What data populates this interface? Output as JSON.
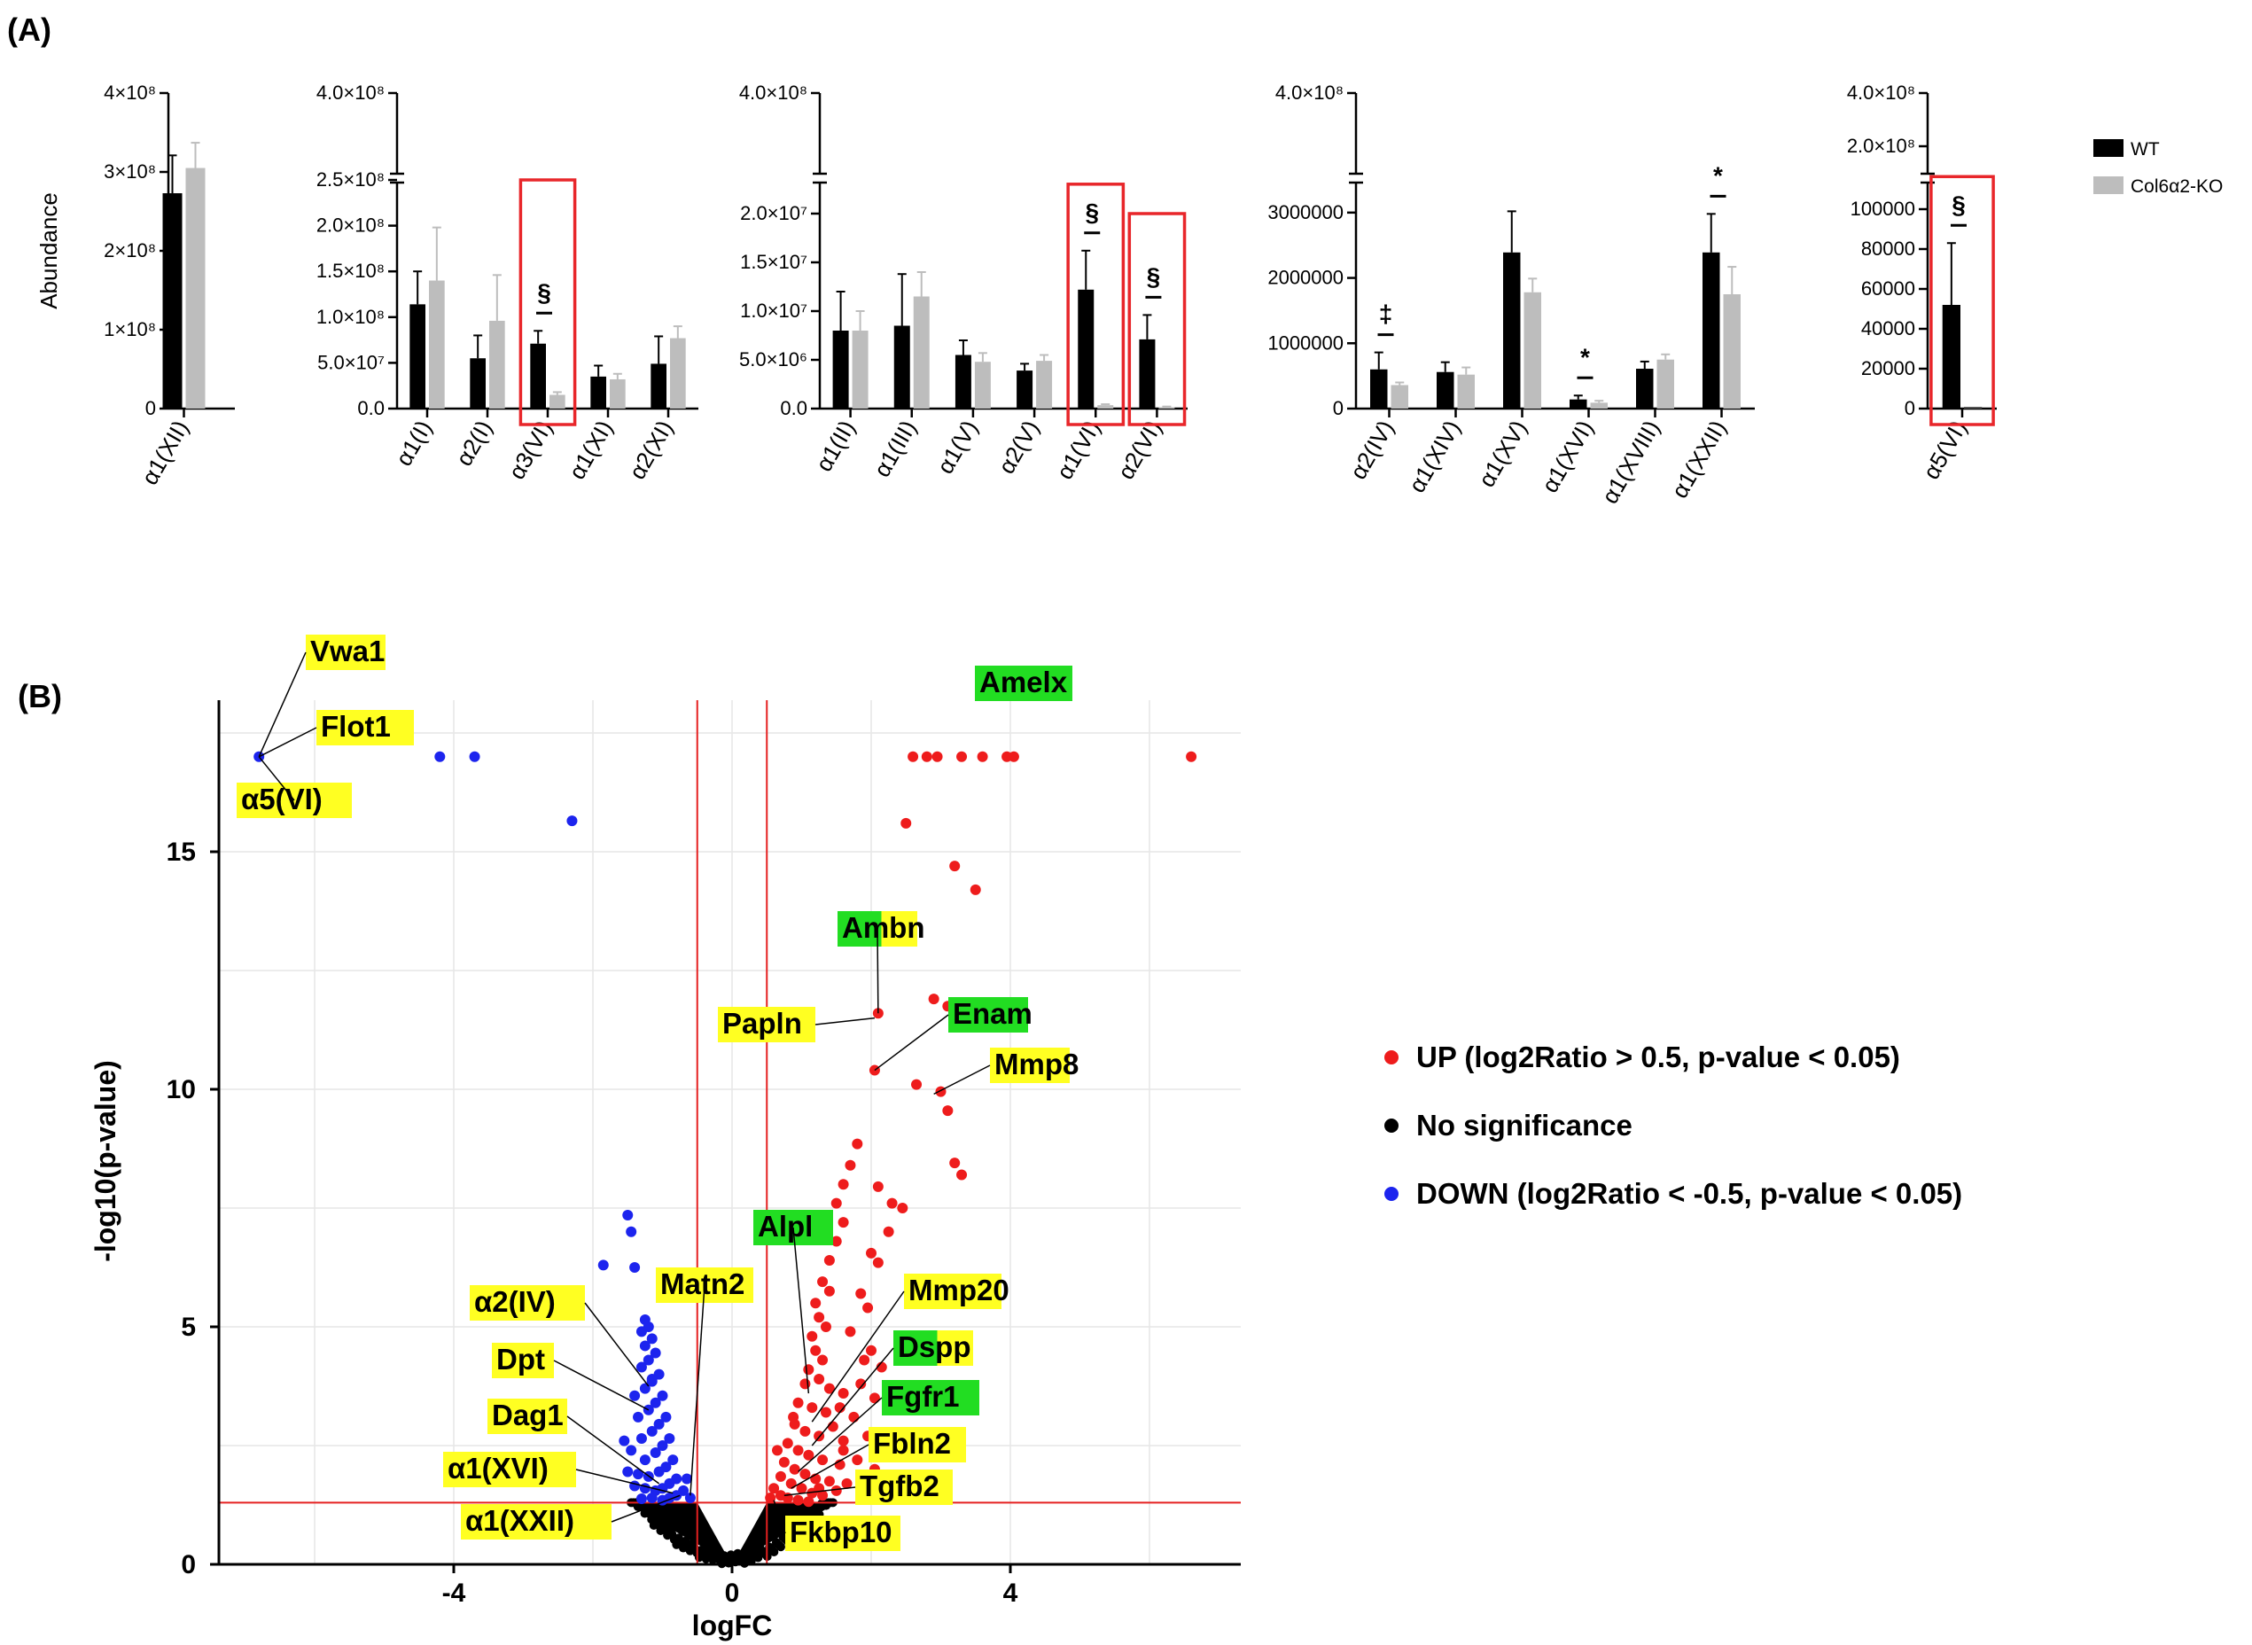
{
  "figure": {
    "panel_a_label": "(A)",
    "panel_b_label": "(B)"
  },
  "colors": {
    "wt": "#000000",
    "ko": "#bdbdbd",
    "highlight_box": "#e8262a",
    "up": "#ee1c1c",
    "down": "#1c24ee",
    "nosig": "#000000",
    "label_yellow": "#ffff22",
    "label_green": "#22dd22",
    "threshold_line": "#e52020",
    "grid": "#e6e6e6"
  },
  "legend_a": {
    "wt": "WT",
    "ko": "Col6α2-KO"
  },
  "chart_data": [
    {
      "type": "bar",
      "ylabel": "Abundance",
      "ylim": [
        0,
        400000000
      ],
      "broken_axis": false,
      "ticks": [
        {
          "value": 0,
          "label": "0"
        },
        {
          "value": 100000000,
          "label": "1×10⁸"
        },
        {
          "value": 200000000,
          "label": "2×10⁸"
        },
        {
          "value": 300000000,
          "label": "3×10⁸"
        },
        {
          "value": 400000000,
          "label": "4×10⁸"
        }
      ],
      "categories": [
        "α1(XII)"
      ],
      "series": [
        {
          "name": "WT",
          "values": [
            273000000
          ],
          "errors": [
            48000000
          ]
        },
        {
          "name": "Col6α2-KO",
          "values": [
            305000000
          ],
          "errors": [
            32000000
          ]
        }
      ],
      "significance": [],
      "boxed": []
    },
    {
      "type": "bar",
      "ylabel": "",
      "ylim": [
        0,
        250000000
      ],
      "broken_axis": true,
      "break_top_label": "4.0×10⁸",
      "ticks": [
        {
          "value": 0,
          "label": "0.0"
        },
        {
          "value": 50000000,
          "label": "5.0×10⁷"
        },
        {
          "value": 100000000,
          "label": "1.0×10⁸"
        },
        {
          "value": 150000000,
          "label": "1.5×10⁸"
        },
        {
          "value": 200000000,
          "label": "2.0×10⁸"
        },
        {
          "value": 250000000,
          "label": "2.5×10⁸"
        }
      ],
      "categories": [
        "α1(I)",
        "α2(I)",
        "α3(VI)",
        "α1(XI)",
        "α2(XI)"
      ],
      "series": [
        {
          "name": "WT",
          "values": [
            114000000,
            55000000,
            71000000,
            35000000,
            49000000
          ],
          "errors": [
            36000000,
            25000000,
            14000000,
            12000000,
            30000000
          ]
        },
        {
          "name": "Col6α2-KO",
          "values": [
            140000000,
            96000000,
            15000000,
            32000000,
            77000000
          ],
          "errors": [
            58000000,
            50000000,
            3000000,
            6000000,
            13000000
          ]
        }
      ],
      "significance": [
        {
          "category": "α3(VI)",
          "symbol": "§"
        }
      ],
      "boxed": [
        "α3(VI)"
      ]
    },
    {
      "type": "bar",
      "ylabel": "",
      "ylim": [
        0,
        20000000
      ],
      "broken_axis": true,
      "break_top_label": "4.0×10⁸",
      "ticks": [
        {
          "value": 0,
          "label": "0.0"
        },
        {
          "value": 5000000,
          "label": "5.0×10⁶"
        },
        {
          "value": 10000000,
          "label": "1.0×10⁷"
        },
        {
          "value": 15000000,
          "label": "1.5×10⁷"
        },
        {
          "value": 20000000,
          "label": "2.0×10⁷"
        }
      ],
      "categories": [
        "α1(II)",
        "α1(III)",
        "α1(V)",
        "α2(V)",
        "α1(VI)",
        "α2(VI)"
      ],
      "series": [
        {
          "name": "WT",
          "values": [
            8000000,
            8500000,
            5500000,
            3900000,
            12200000,
            7100000
          ],
          "errors": [
            4000000,
            5300000,
            1500000,
            700000,
            4000000,
            2500000
          ]
        },
        {
          "name": "Col6α2-KO",
          "values": [
            8000000,
            11500000,
            4800000,
            4900000,
            350000,
            150000
          ],
          "errors": [
            2000000,
            2500000,
            900000,
            600000,
            100000,
            60000
          ]
        }
      ],
      "significance": [
        {
          "category": "α1(VI)",
          "symbol": "§"
        },
        {
          "category": "α2(VI)",
          "symbol": "§"
        }
      ],
      "boxed": [
        "α1(VI)",
        "α2(VI)"
      ]
    },
    {
      "type": "bar",
      "ylabel": "",
      "ylim": [
        0,
        3500000
      ],
      "broken_axis": true,
      "break_top_label": "4.0×10⁸",
      "ticks": [
        {
          "value": 0,
          "label": "0"
        },
        {
          "value": 1000000,
          "label": "1000000"
        },
        {
          "value": 2000000,
          "label": "2000000"
        },
        {
          "value": 3000000,
          "label": "3000000"
        }
      ],
      "categories": [
        "α2(IV)",
        "α1(XIV)",
        "α1(XV)",
        "α1(XVI)",
        "α1(XVIII)",
        "α1(XXII)"
      ],
      "series": [
        {
          "name": "WT",
          "values": [
            600000,
            560000,
            2390000,
            140000,
            610000,
            2390000
          ],
          "errors": [
            260000,
            150000,
            630000,
            60000,
            110000,
            590000
          ]
        },
        {
          "name": "Col6α2-KO",
          "values": [
            360000,
            520000,
            1780000,
            90000,
            750000,
            1750000
          ],
          "errors": [
            40000,
            110000,
            210000,
            30000,
            80000,
            420000
          ]
        }
      ],
      "significance": [
        {
          "category": "α2(IV)",
          "symbol": "‡"
        },
        {
          "category": "α1(XVI)",
          "symbol": "*"
        },
        {
          "category": "α1(XXII)",
          "symbol": "*"
        }
      ],
      "boxed": []
    },
    {
      "type": "bar",
      "ylabel": "",
      "ylim": [
        0,
        100000
      ],
      "broken_axis": true,
      "break_top_label": "4.0×10⁸",
      "break_second_label": "2.0×10⁸",
      "ticks": [
        {
          "value": 0,
          "label": "0"
        },
        {
          "value": 20000,
          "label": "20000"
        },
        {
          "value": 40000,
          "label": "40000"
        },
        {
          "value": 60000,
          "label": "60000"
        },
        {
          "value": 80000,
          "label": "80000"
        },
        {
          "value": 100000,
          "label": "100000"
        }
      ],
      "categories": [
        "α5(VI)"
      ],
      "series": [
        {
          "name": "WT",
          "values": [
            52000
          ],
          "errors": [
            31000
          ]
        },
        {
          "name": "Col6α2-KO",
          "values": [
            0
          ],
          "errors": [
            0
          ]
        }
      ],
      "significance": [
        {
          "category": "α5(VI)",
          "symbol": "§"
        }
      ],
      "boxed": [
        "α5(VI)"
      ]
    },
    {
      "type": "scatter",
      "title": "",
      "xlabel": "logFC",
      "ylabel": "-log10(p-value)",
      "xlim": [
        -7.3,
        7.3
      ],
      "ylim": [
        0,
        18
      ],
      "x_ticks": [
        {
          "value": -4,
          "label": "-4"
        },
        {
          "value": 0,
          "label": "0"
        },
        {
          "value": 4,
          "label": "4"
        }
      ],
      "y_ticks": [
        {
          "value": 0,
          "label": "0"
        },
        {
          "value": 5,
          "label": "5"
        },
        {
          "value": 10,
          "label": "10"
        },
        {
          "value": 15,
          "label": "15"
        }
      ],
      "thresholds": {
        "x": [
          -0.5,
          0.5
        ],
        "y": 1.3
      },
      "legend": [
        {
          "key": "up",
          "label": "UP (log2Ratio > 0.5, p-value < 0.05)"
        },
        {
          "key": "nosig",
          "label": "No significance"
        },
        {
          "key": "down",
          "label": "DOWN (log2Ratio < -0.5, p-value < 0.05)"
        }
      ],
      "up_points": [
        [
          6.6,
          17.0
        ],
        [
          2.6,
          17.0
        ],
        [
          2.8,
          17.0
        ],
        [
          2.95,
          17.0
        ],
        [
          3.3,
          17.0
        ],
        [
          3.6,
          17.0
        ],
        [
          3.95,
          17.0
        ],
        [
          4.05,
          17.0
        ],
        [
          2.5,
          15.6
        ],
        [
          3.2,
          14.7
        ],
        [
          3.5,
          14.2
        ],
        [
          2.1,
          11.6
        ],
        [
          2.9,
          11.9
        ],
        [
          3.1,
          11.75
        ],
        [
          2.05,
          10.4
        ],
        [
          2.65,
          10.1
        ],
        [
          3.0,
          9.95
        ],
        [
          3.1,
          9.55
        ],
        [
          3.2,
          8.45
        ],
        [
          3.3,
          8.2
        ],
        [
          1.8,
          8.85
        ],
        [
          1.7,
          8.4
        ],
        [
          1.6,
          8.0
        ],
        [
          2.1,
          7.95
        ],
        [
          1.5,
          7.6
        ],
        [
          2.3,
          7.6
        ],
        [
          2.45,
          7.5
        ],
        [
          1.6,
          7.2
        ],
        [
          2.25,
          7.0
        ],
        [
          1.5,
          6.8
        ],
        [
          1.4,
          6.4
        ],
        [
          2.0,
          6.55
        ],
        [
          2.1,
          6.35
        ],
        [
          1.3,
          5.95
        ],
        [
          1.4,
          5.75
        ],
        [
          1.2,
          5.5
        ],
        [
          1.85,
          5.7
        ],
        [
          1.95,
          5.4
        ],
        [
          1.25,
          5.2
        ],
        [
          1.35,
          5.0
        ],
        [
          1.15,
          4.8
        ],
        [
          1.7,
          4.9
        ],
        [
          2.0,
          4.5
        ],
        [
          1.2,
          4.5
        ],
        [
          1.3,
          4.3
        ],
        [
          1.1,
          4.1
        ],
        [
          1.9,
          4.3
        ],
        [
          2.15,
          4.15
        ],
        [
          1.05,
          3.8
        ],
        [
          1.25,
          3.9
        ],
        [
          1.4,
          3.7
        ],
        [
          1.6,
          3.6
        ],
        [
          1.85,
          3.8
        ],
        [
          2.05,
          3.5
        ],
        [
          0.95,
          3.4
        ],
        [
          1.15,
          3.3
        ],
        [
          1.35,
          3.2
        ],
        [
          1.55,
          3.3
        ],
        [
          1.75,
          3.1
        ],
        [
          0.9,
          2.95
        ],
        [
          1.05,
          2.8
        ],
        [
          1.25,
          2.7
        ],
        [
          1.45,
          2.9
        ],
        [
          1.6,
          2.6
        ],
        [
          1.95,
          2.7
        ],
        [
          2.2,
          2.55
        ],
        [
          0.8,
          2.55
        ],
        [
          0.95,
          2.4
        ],
        [
          1.1,
          2.3
        ],
        [
          1.3,
          2.2
        ],
        [
          1.55,
          2.1
        ],
        [
          1.8,
          2.2
        ],
        [
          2.05,
          2.0
        ],
        [
          0.75,
          2.15
        ],
        [
          0.9,
          2.0
        ],
        [
          1.05,
          1.9
        ],
        [
          1.2,
          1.8
        ],
        [
          1.4,
          1.75
        ],
        [
          1.65,
          1.7
        ],
        [
          0.7,
          1.85
        ],
        [
          0.85,
          1.7
        ],
        [
          1.0,
          1.6
        ],
        [
          1.15,
          1.5
        ],
        [
          1.3,
          1.45
        ],
        [
          1.5,
          1.55
        ],
        [
          0.6,
          1.6
        ],
        [
          0.7,
          1.45
        ],
        [
          0.8,
          1.4
        ],
        [
          0.95,
          1.35
        ],
        [
          1.1,
          1.32
        ],
        [
          0.55,
          1.4
        ],
        [
          1.25,
          1.6
        ],
        [
          1.6,
          2.4
        ],
        [
          0.65,
          2.4
        ],
        [
          0.88,
          3.1
        ]
      ],
      "down_points": [
        [
          -6.8,
          17.0
        ],
        [
          -4.2,
          17.0
        ],
        [
          -3.7,
          17.0
        ],
        [
          -2.3,
          15.65
        ],
        [
          -1.5,
          7.35
        ],
        [
          -1.45,
          7.0
        ],
        [
          -1.85,
          6.3
        ],
        [
          -1.4,
          6.25
        ],
        [
          -1.25,
          5.15
        ],
        [
          -1.2,
          5.0
        ],
        [
          -1.3,
          4.9
        ],
        [
          -1.15,
          4.75
        ],
        [
          -1.25,
          4.6
        ],
        [
          -1.1,
          4.45
        ],
        [
          -1.2,
          4.3
        ],
        [
          -1.3,
          4.15
        ],
        [
          -1.05,
          4.0
        ],
        [
          -1.15,
          3.85
        ],
        [
          -1.25,
          3.7
        ],
        [
          -1.4,
          3.55
        ],
        [
          -1.0,
          3.55
        ],
        [
          -1.1,
          3.4
        ],
        [
          -1.2,
          3.25
        ],
        [
          -1.35,
          3.1
        ],
        [
          -0.95,
          3.1
        ],
        [
          -1.05,
          2.95
        ],
        [
          -1.15,
          2.8
        ],
        [
          -1.3,
          2.65
        ],
        [
          -0.9,
          2.65
        ],
        [
          -1.0,
          2.5
        ],
        [
          -1.1,
          2.35
        ],
        [
          -1.25,
          2.2
        ],
        [
          -1.45,
          2.4
        ],
        [
          -0.85,
          2.2
        ],
        [
          -0.95,
          2.05
        ],
        [
          -1.05,
          1.95
        ],
        [
          -1.2,
          1.85
        ],
        [
          -1.35,
          1.9
        ],
        [
          -1.5,
          1.95
        ],
        [
          -0.8,
          1.8
        ],
        [
          -0.9,
          1.7
        ],
        [
          -1.0,
          1.6
        ],
        [
          -1.1,
          1.55
        ],
        [
          -1.25,
          1.6
        ],
        [
          -1.4,
          1.65
        ],
        [
          -0.7,
          1.55
        ],
        [
          -0.8,
          1.45
        ],
        [
          -0.9,
          1.4
        ],
        [
          -1.0,
          1.35
        ],
        [
          -1.15,
          1.4
        ],
        [
          -1.3,
          1.38
        ],
        [
          -0.6,
          1.4
        ],
        [
          -0.65,
          1.8
        ],
        [
          -1.55,
          2.6
        ],
        [
          -1.15,
          3.9
        ]
      ],
      "labels": [
        {
          "text": "Vwa1",
          "bg": "yellow",
          "target": [
            -6.8,
            17.0
          ]
        },
        {
          "text": "Flot1",
          "bg": "yellow",
          "target": [
            -6.8,
            17.0
          ]
        },
        {
          "text": "α5(VI)",
          "bg": "yellow",
          "target": [
            -6.8,
            17.0
          ]
        },
        {
          "text": "Amelx",
          "bg": "green",
          "target": null
        },
        {
          "text": "Ambn",
          "bg": "mixed",
          "target": [
            2.1,
            11.6
          ]
        },
        {
          "text": "Papln",
          "bg": "yellow",
          "target": [
            2.05,
            11.5
          ]
        },
        {
          "text": "Enam",
          "bg": "green",
          "target": [
            2.05,
            10.4
          ]
        },
        {
          "text": "Mmp8",
          "bg": "yellow",
          "target": [
            2.9,
            9.9
          ]
        },
        {
          "text": "Alpl",
          "bg": "green",
          "target": [
            1.1,
            3.6
          ]
        },
        {
          "text": "Mmp20",
          "bg": "yellow",
          "target": [
            1.15,
            3.0
          ]
        },
        {
          "text": "Dspp",
          "bg": "mixed",
          "target": [
            1.15,
            2.5
          ]
        },
        {
          "text": "Fgfr1",
          "bg": "green",
          "target": [
            0.95,
            1.95
          ]
        },
        {
          "text": "Fbln2",
          "bg": "yellow",
          "target": [
            0.85,
            1.6
          ]
        },
        {
          "text": "Tgfb2",
          "bg": "yellow",
          "target": [
            0.75,
            1.45
          ]
        },
        {
          "text": "Fkbp10",
          "bg": "yellow",
          "target": [
            0.6,
            1.35
          ]
        },
        {
          "text": "Matn2",
          "bg": "yellow",
          "target": [
            -0.6,
            1.45
          ]
        },
        {
          "text": "α2(IV)",
          "bg": "yellow",
          "target": [
            -1.2,
            3.75
          ]
        },
        {
          "text": "Dpt",
          "bg": "yellow",
          "target": [
            -1.2,
            3.25
          ]
        },
        {
          "text": "Dag1",
          "bg": "yellow",
          "target": [
            -1.05,
            1.7
          ]
        },
        {
          "text": "α1(XVI)",
          "bg": "yellow",
          "target": [
            -0.85,
            1.5
          ]
        },
        {
          "text": "α1(XXII)",
          "bg": "yellow",
          "target": [
            -0.75,
            1.45
          ]
        }
      ]
    }
  ]
}
